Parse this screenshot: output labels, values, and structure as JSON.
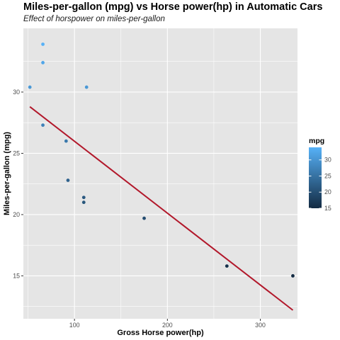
{
  "chart_data": {
    "type": "scatter",
    "title": "Miles-per-gallon (mpg) vs Horse power(hp) in Automatic Cars",
    "subtitle": "Effect of horspower on miles-per-gallon",
    "xlabel": "Gross Horse power(hp)",
    "ylabel": "Miles-per-gallon (mpg)",
    "xlim": [
      45,
      340
    ],
    "ylim": [
      11.5,
      35.2
    ],
    "x_ticks": [
      100,
      200,
      300
    ],
    "y_ticks": [
      15,
      20,
      25,
      30
    ],
    "grid": true,
    "points": [
      {
        "x": 66,
        "y": 33.9
      },
      {
        "x": 66,
        "y": 32.4
      },
      {
        "x": 52,
        "y": 30.4
      },
      {
        "x": 113,
        "y": 30.4
      },
      {
        "x": 66,
        "y": 27.3
      },
      {
        "x": 91,
        "y": 26.0
      },
      {
        "x": 93,
        "y": 22.8
      },
      {
        "x": 110,
        "y": 21.4
      },
      {
        "x": 110,
        "y": 21.0
      },
      {
        "x": 175,
        "y": 19.7
      },
      {
        "x": 264,
        "y": 15.8
      },
      {
        "x": 335,
        "y": 15.0
      }
    ],
    "trend_line": {
      "x": [
        52,
        335
      ],
      "y": [
        28.8,
        12.2
      ],
      "color": "#b2182b"
    },
    "legend": {
      "title": "mpg",
      "position": "right",
      "ticks": [
        15,
        20,
        25,
        30
      ],
      "range": [
        15.0,
        33.9
      ],
      "color_low": "#132b43",
      "color_high": "#56b1f7"
    },
    "panel_background": "#e5e5e5",
    "grid_color": "#ffffff"
  }
}
